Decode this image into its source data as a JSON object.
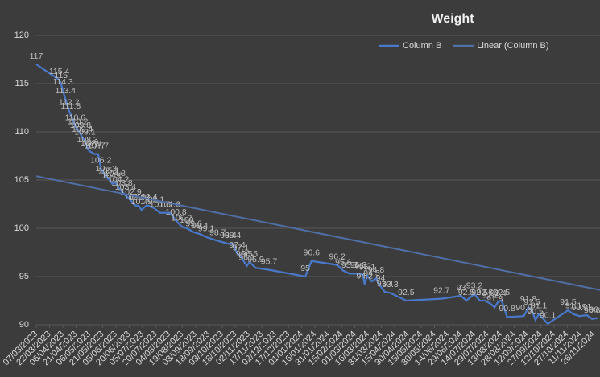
{
  "chart_data": {
    "type": "line",
    "title": "Weight",
    "xlim": [
      "07/03/2023",
      "03/12/2024"
    ],
    "xticks": [
      "07/03/2023",
      "22/03/2023",
      "06/04/2023",
      "21/04/2023",
      "06/05/2023",
      "21/05/2023",
      "05/06/2023",
      "20/06/2023",
      "05/07/2023",
      "20/07/2023",
      "04/08/2023",
      "19/08/2023",
      "03/09/2023",
      "18/09/2023",
      "03/10/2023",
      "18/10/2023",
      "02/11/2023",
      "17/11/2023",
      "02/12/2023",
      "17/12/2023",
      "01/01/2024",
      "16/01/2024",
      "31/01/2024",
      "15/02/2024",
      "01/03/2024",
      "16/03/2024",
      "31/03/2024",
      "15/04/2024",
      "30/04/2024",
      "15/05/2024",
      "30/05/2024",
      "14/06/2024",
      "29/06/2024",
      "14/07/2024",
      "29/07/2024",
      "13/08/2024",
      "28/08/2024",
      "12/09/2024",
      "27/09/2024",
      "12/10/2024",
      "27/10/2024",
      "11/11/2024",
      "26/11/2024"
    ],
    "ylim": [
      90,
      120
    ],
    "yticks": [
      90,
      95,
      100,
      105,
      110,
      115,
      120
    ],
    "grid": true,
    "legend": "top-right",
    "series": [
      {
        "name": "Column B",
        "color": "#4a78c8",
        "data_labels": true,
        "x": [
          "07/03/2023",
          "02/04/2023",
          "04/04/2023",
          "06/04/2023",
          "09/04/2023",
          "13/04/2023",
          "15/04/2023",
          "20/04/2023",
          "23/04/2023",
          "26/04/2023",
          "28/04/2023",
          "01/05/2023",
          "04/05/2023",
          "06/05/2023",
          "08/05/2023",
          "12/05/2023",
          "16/05/2023",
          "19/05/2023",
          "25/05/2023",
          "28/05/2023",
          "01/06/2023",
          "04/06/2023",
          "08/06/2023",
          "12/06/2023",
          "16/06/2023",
          "22/06/2023",
          "26/06/2023",
          "01/07/2023",
          "04/07/2023",
          "10/07/2023",
          "18/07/2023",
          "25/07/2023",
          "05/08/2023",
          "12/08/2023",
          "18/08/2023",
          "24/08/2023",
          "01/09/2023",
          "08/09/2023",
          "15/09/2023",
          "28/09/2023",
          "10/10/2023",
          "15/10/2023",
          "20/10/2023",
          "24/10/2023",
          "28/10/2023",
          "31/10/2023",
          "03/11/2023",
          "10/11/2023",
          "25/11/2023",
          "05/01/2024",
          "12/01/2024",
          "10/02/2024",
          "17/02/2024",
          "24/02/2024",
          "05/03/2024",
          "10/03/2024",
          "12/03/2024",
          "15/03/2024",
          "20/03/2024",
          "25/03/2024",
          "30/03/2024",
          "04/04/2024",
          "10/04/2024",
          "28/04/2024",
          "07/06/2024",
          "29/06/2024",
          "05/07/2024",
          "14/07/2024",
          "20/07/2024",
          "26/07/2024",
          "01/08/2024",
          "06/08/2024",
          "10/08/2024",
          "14/08/2024",
          "20/08/2024",
          "08/09/2024",
          "13/09/2024",
          "17/09/2024",
          "21/09/2024",
          "25/09/2024",
          "05/10/2024",
          "28/10/2024",
          "03/11/2024",
          "10/11/2024",
          "18/11/2024",
          "24/11/2024",
          "30/11/2024"
        ],
        "values": [
          117,
          115.4,
          115,
          114.3,
          113.4,
          112.2,
          111.8,
          110.6,
          110.2,
          109.8,
          109.4,
          109.1,
          108.3,
          108,
          107.9,
          107.7,
          107.7,
          106.2,
          105.3,
          105.1,
          104.6,
          104.8,
          104.2,
          103.8,
          103.4,
          102.9,
          102.4,
          102.3,
          101.9,
          102.4,
          102.1,
          101.6,
          101.6,
          100.8,
          100.2,
          100,
          99.6,
          99.4,
          99.1,
          98.7,
          98.4,
          98.4,
          97.4,
          97.1,
          96.5,
          96.1,
          96.5,
          95.9,
          95.7,
          95,
          96.6,
          96.2,
          95.6,
          95.3,
          95.3,
          95.2,
          94.2,
          95.1,
          94.5,
          94.8,
          94,
          93.4,
          93.3,
          92.5,
          92.7,
          93,
          92.5,
          93.2,
          92.5,
          92.5,
          92.2,
          91.8,
          92.4,
          92.5,
          90.8,
          90.9,
          91.8,
          91.5,
          90.5,
          91.1,
          90.1,
          91.5,
          91.1,
          90.9,
          91,
          90.6,
          90.7
        ]
      },
      {
        "name": "Linear (Column B)",
        "color": "#4f6fa6",
        "x": [
          "07/03/2023",
          "03/12/2024"
        ],
        "values": [
          105.4,
          93.6
        ]
      }
    ]
  }
}
